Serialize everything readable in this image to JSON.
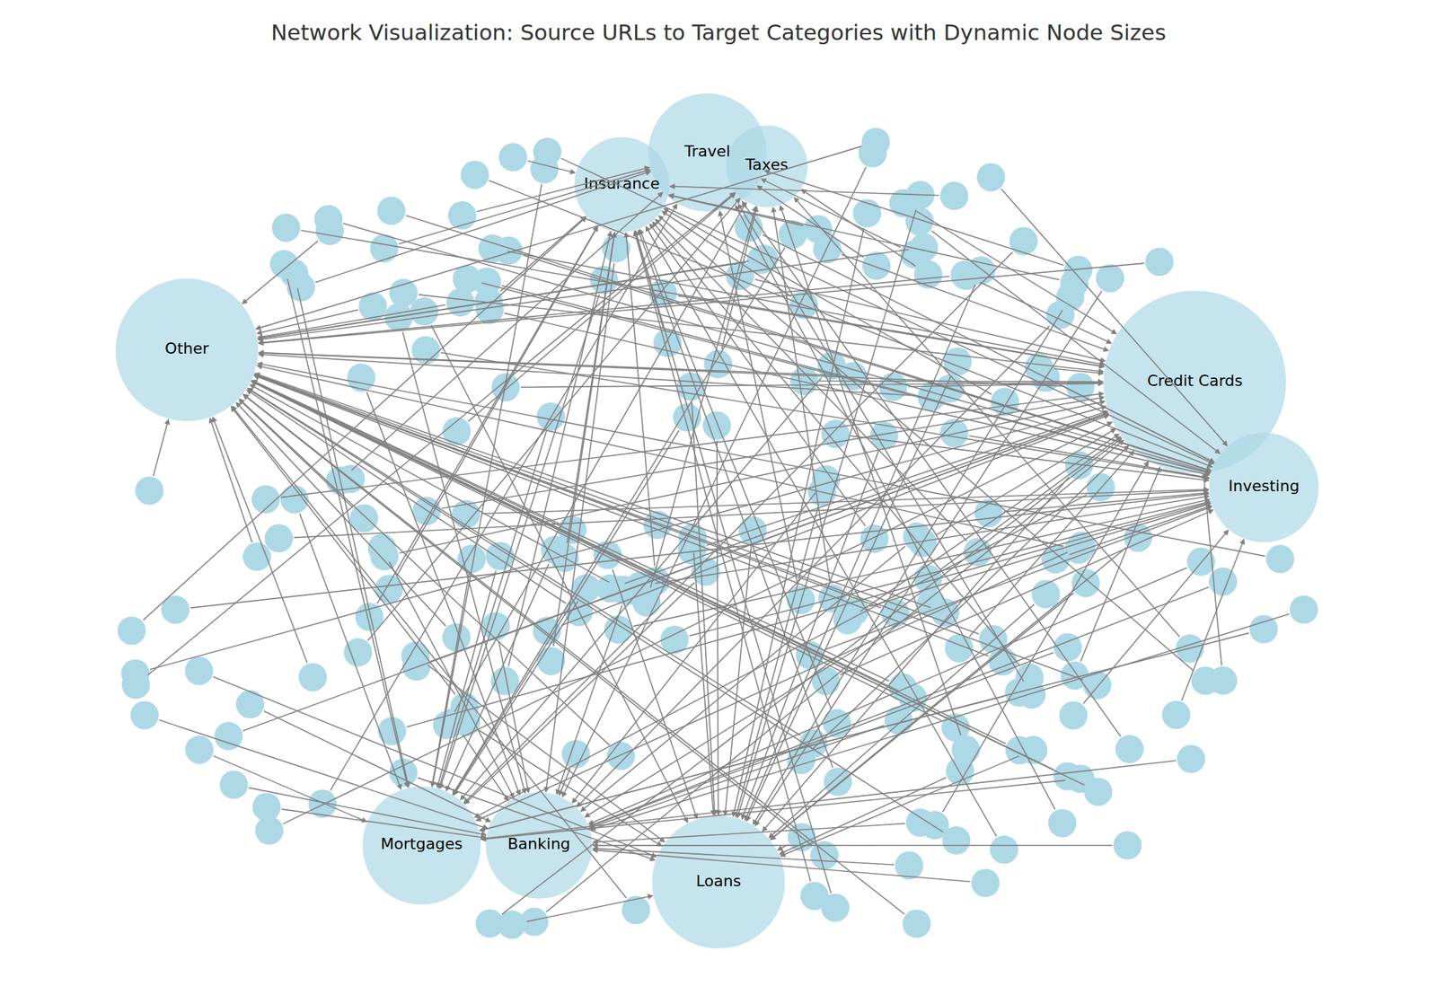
{
  "chart_data": {
    "type": "network",
    "title": "Network Visualization: Source URLs to Target Categories with Dynamic Node Sizes",
    "color": "#add8e6",
    "source_size": 240,
    "targets": [
      {
        "label": "Other",
        "size": 6100,
        "sources": 42
      },
      {
        "label": "Credit Cards",
        "size": 10000,
        "sources": 32
      },
      {
        "label": "Investing",
        "size": 3600,
        "sources": 30
      },
      {
        "label": "Loans",
        "size": 5300,
        "sources": 26
      },
      {
        "label": "Banking",
        "size": 3400,
        "sources": 26
      },
      {
        "label": "Mortgages",
        "size": 4200,
        "sources": 22
      },
      {
        "label": "Insurance",
        "size": 2700,
        "sources": 24
      },
      {
        "label": "Travel",
        "size": 4200,
        "sources": 12
      },
      {
        "label": "Taxes",
        "size": 2000,
        "sources": 10
      }
    ]
  }
}
